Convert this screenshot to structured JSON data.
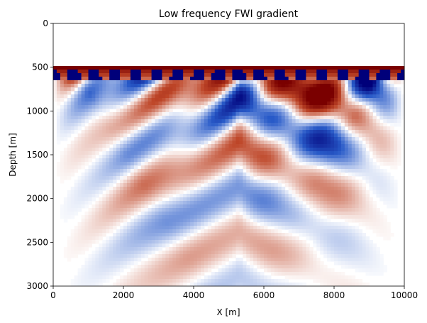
{
  "chart_data": {
    "type": "heatmap",
    "title": "Low frequency FWI gradient",
    "xlabel": "X [m]",
    "ylabel": "Depth [m]",
    "xlim": [
      0,
      10000
    ],
    "ylim": [
      3000,
      0
    ],
    "x_ticks": [
      "0",
      "2000",
      "4000",
      "6000",
      "8000",
      "10000"
    ],
    "y_ticks": [
      "0",
      "500",
      "1000",
      "1500",
      "2000",
      "2500",
      "3000"
    ],
    "colormap": "seismic-like diverging (dark blue – white – dark red)",
    "colors": {
      "negative": "#00007a",
      "zero": "#ffffff",
      "positive": "#7a0000"
    },
    "y_axis_inverted": true,
    "grid": false,
    "legend": "none",
    "features": {
      "zero_region_above_depth": 500,
      "surface_band_depth": [
        520,
        640
      ],
      "source_lobe_count": 17,
      "max_visible_depth": 3000
    }
  }
}
